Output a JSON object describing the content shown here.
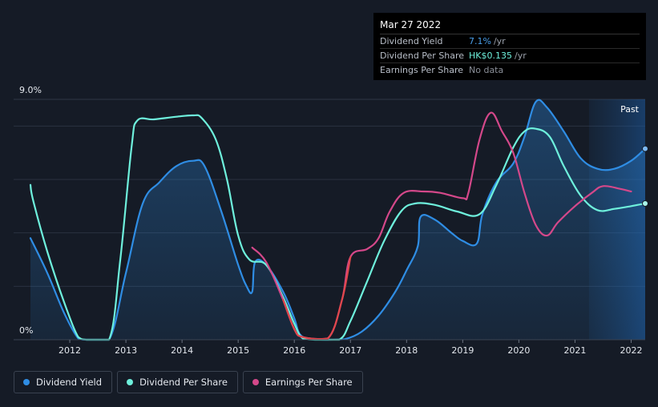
{
  "tooltip": {
    "date": "Mar 27 2022",
    "rows": [
      {
        "key": "Dividend Yield",
        "value": "7.1%",
        "unit": "/yr",
        "color": "#4a9fea"
      },
      {
        "key": "Dividend Per Share",
        "value": "HK$0.135",
        "unit": "/yr",
        "color": "#6ef0dc"
      },
      {
        "key": "Earnings Per Share",
        "value": "No data",
        "unit": "",
        "color": "#8a8f98"
      }
    ]
  },
  "legend": [
    {
      "label": "Dividend Yield",
      "color": "#2f8de4"
    },
    {
      "label": "Dividend Per Share",
      "color": "#6ef0dc"
    },
    {
      "label": "Earnings Per Share",
      "color": "#d4488a"
    }
  ],
  "chart_data": {
    "type": "line",
    "y_axis_labels": [
      "9.0%",
      "0%"
    ],
    "ylim": [
      0,
      9.0
    ],
    "xlim": [
      2011.0,
      2022.25
    ],
    "x_ticks": [
      "2012",
      "2013",
      "2014",
      "2015",
      "2016",
      "2017",
      "2018",
      "2019",
      "2020",
      "2021",
      "2022"
    ],
    "past_label": "Past",
    "past_region_start": 2021.25,
    "grid": true,
    "series": [
      {
        "name": "Dividend Yield",
        "color": "#2f8de4",
        "fill": true,
        "points": [
          [
            2011.3,
            3.8
          ],
          [
            2011.6,
            2.5
          ],
          [
            2011.9,
            1.0
          ],
          [
            2012.15,
            0.05
          ],
          [
            2012.3,
            0
          ],
          [
            2012.7,
            0
          ],
          [
            2013.0,
            2.5
          ],
          [
            2013.3,
            5.1
          ],
          [
            2013.6,
            5.9
          ],
          [
            2013.9,
            6.5
          ],
          [
            2014.2,
            6.7
          ],
          [
            2014.4,
            6.5
          ],
          [
            2014.7,
            4.8
          ],
          [
            2015.0,
            2.8
          ],
          [
            2015.15,
            2.0
          ],
          [
            2015.25,
            1.8
          ],
          [
            2015.3,
            2.9
          ],
          [
            2015.5,
            2.8
          ],
          [
            2015.8,
            1.8
          ],
          [
            2016.0,
            0.8
          ],
          [
            2016.1,
            0.2
          ],
          [
            2016.3,
            0.02
          ],
          [
            2016.6,
            0
          ],
          [
            2016.9,
            0.02
          ],
          [
            2017.2,
            0.3
          ],
          [
            2017.5,
            0.9
          ],
          [
            2017.8,
            1.8
          ],
          [
            2018.0,
            2.6
          ],
          [
            2018.2,
            3.5
          ],
          [
            2018.25,
            4.6
          ],
          [
            2018.5,
            4.5
          ],
          [
            2018.8,
            4.0
          ],
          [
            2019.0,
            3.7
          ],
          [
            2019.25,
            3.6
          ],
          [
            2019.35,
            4.7
          ],
          [
            2019.6,
            5.9
          ],
          [
            2019.9,
            6.6
          ],
          [
            2020.1,
            7.6
          ],
          [
            2020.3,
            8.9
          ],
          [
            2020.5,
            8.7
          ],
          [
            2020.8,
            7.8
          ],
          [
            2021.1,
            6.8
          ],
          [
            2021.4,
            6.4
          ],
          [
            2021.7,
            6.4
          ],
          [
            2022.0,
            6.7
          ],
          [
            2022.25,
            7.15
          ]
        ]
      },
      {
        "name": "Dividend Per Share",
        "color": "#6ef0dc",
        "fill": false,
        "points": [
          [
            2011.3,
            5.8
          ],
          [
            2011.35,
            5.2
          ],
          [
            2011.6,
            3.3
          ],
          [
            2011.9,
            1.4
          ],
          [
            2012.15,
            0.1
          ],
          [
            2012.3,
            0
          ],
          [
            2012.7,
            0
          ],
          [
            2012.9,
            3.0
          ],
          [
            2013.1,
            7.2
          ],
          [
            2013.2,
            8.2
          ],
          [
            2013.5,
            8.25
          ],
          [
            2013.9,
            8.35
          ],
          [
            2014.2,
            8.4
          ],
          [
            2014.35,
            8.3
          ],
          [
            2014.6,
            7.5
          ],
          [
            2014.8,
            6.0
          ],
          [
            2015.0,
            3.9
          ],
          [
            2015.2,
            3.0
          ],
          [
            2015.5,
            2.8
          ],
          [
            2015.8,
            1.6
          ],
          [
            2016.0,
            0.6
          ],
          [
            2016.15,
            0.05
          ],
          [
            2016.4,
            0
          ],
          [
            2016.8,
            0
          ],
          [
            2017.0,
            0.7
          ],
          [
            2017.3,
            2.2
          ],
          [
            2017.6,
            3.7
          ],
          [
            2017.9,
            4.8
          ],
          [
            2018.15,
            5.1
          ],
          [
            2018.5,
            5.05
          ],
          [
            2018.9,
            4.8
          ],
          [
            2019.3,
            4.7
          ],
          [
            2019.6,
            5.8
          ],
          [
            2019.9,
            7.2
          ],
          [
            2020.1,
            7.8
          ],
          [
            2020.3,
            7.9
          ],
          [
            2020.55,
            7.6
          ],
          [
            2020.8,
            6.5
          ],
          [
            2021.1,
            5.4
          ],
          [
            2021.4,
            4.85
          ],
          [
            2021.7,
            4.9
          ],
          [
            2022.0,
            5.0
          ],
          [
            2022.25,
            5.1
          ]
        ]
      },
      {
        "name": "Earnings Per Share",
        "color": "#d4488a",
        "fill": false,
        "points": [
          [
            2015.25,
            3.45
          ],
          [
            2015.5,
            2.9
          ],
          [
            2015.8,
            1.5
          ],
          [
            2016.0,
            0.4
          ],
          [
            2016.15,
            0.1
          ],
          [
            2016.6,
            0.05
          ],
          [
            2016.85,
            1.5
          ],
          [
            2017.0,
            3.1
          ],
          [
            2017.3,
            3.4
          ],
          [
            2017.5,
            3.8
          ],
          [
            2017.7,
            4.8
          ],
          [
            2017.95,
            5.5
          ],
          [
            2018.3,
            5.55
          ],
          [
            2018.6,
            5.5
          ],
          [
            2019.0,
            5.3
          ],
          [
            2019.1,
            5.5
          ],
          [
            2019.3,
            7.5
          ],
          [
            2019.5,
            8.5
          ],
          [
            2019.7,
            7.8
          ],
          [
            2019.9,
            7.0
          ],
          [
            2020.1,
            5.5
          ],
          [
            2020.3,
            4.3
          ],
          [
            2020.5,
            3.9
          ],
          [
            2020.7,
            4.4
          ],
          [
            2021.0,
            5.0
          ],
          [
            2021.3,
            5.5
          ],
          [
            2021.5,
            5.75
          ],
          [
            2021.8,
            5.65
          ],
          [
            2022.0,
            5.55
          ]
        ]
      }
    ]
  }
}
